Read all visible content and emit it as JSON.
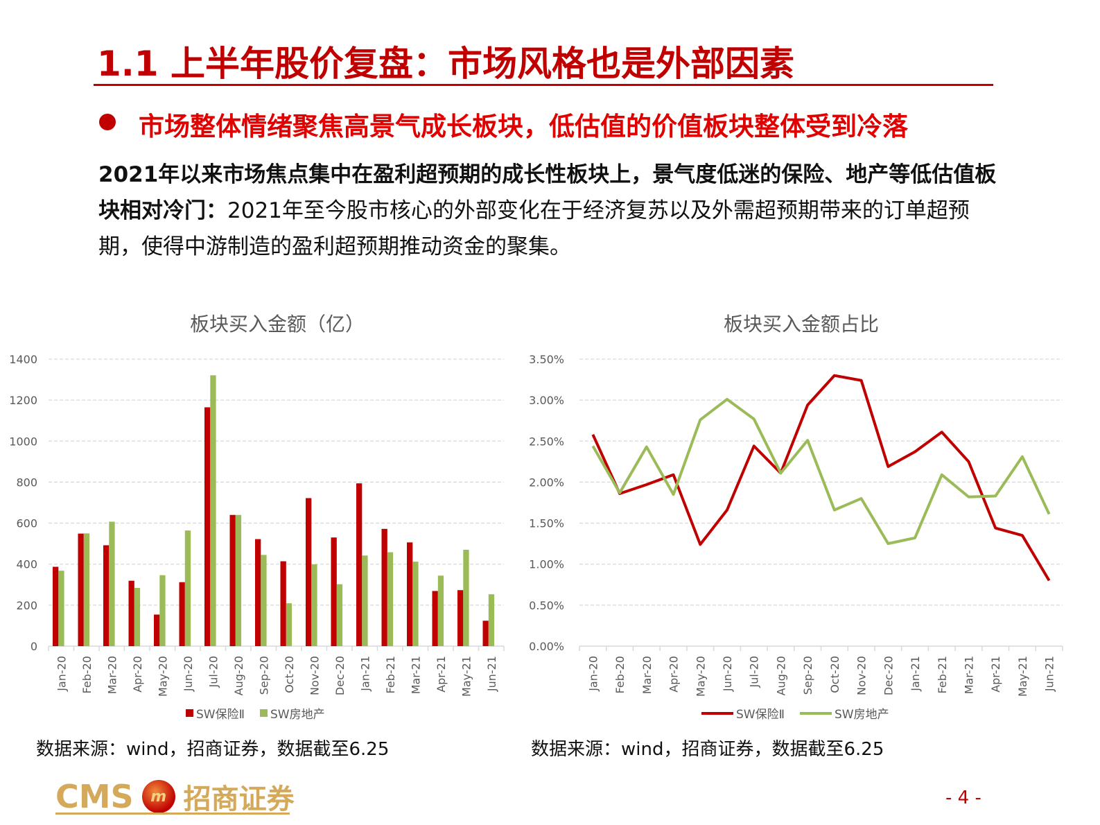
{
  "header": {
    "title": "1.1  上半年股价复盘：市场风格也是外部因素",
    "bullet": "市场整体情绪聚焦高景气成长板块，低估值的价值板块整体受到冷落"
  },
  "body": {
    "bold": "2021年以来市场焦点集中在盈利超预期的成长性板块上，景气度低迷的保险、地产等低估值板块相对冷门：",
    "normal": "2021年至今股市核心的外部变化在于经济复苏以及外需超预期带来的订单超预期，使得中游制造的盈利超预期推动资金的聚集。"
  },
  "colors": {
    "accent": "#c00000",
    "insurance": "#c00000",
    "realestate": "#9bbb59"
  },
  "chart_data": [
    {
      "type": "bar",
      "title": "板块买入金额（亿）",
      "xlabel": "",
      "ylabel": "",
      "ylim": [
        0,
        1400
      ],
      "yticks": [
        "0",
        "200",
        "400",
        "600",
        "800",
        "1000",
        "1200",
        "1400"
      ],
      "grid": true,
      "legend": "bottom",
      "categories": [
        "Jan-20",
        "Feb-20",
        "Mar-20",
        "Apr-20",
        "May-20",
        "Jun-20",
        "Jul-20",
        "Aug-20",
        "Sep-20",
        "Oct-20",
        "Nov-20",
        "Dec-20",
        "Jan-21",
        "Feb-21",
        "Mar-21",
        "Apr-21",
        "May-21",
        "Jun-21"
      ],
      "series": [
        {
          "name": "SW保险Ⅱ",
          "values": [
            387,
            549,
            492,
            319,
            154,
            312,
            1165,
            640,
            522,
            414,
            722,
            530,
            794,
            572,
            506,
            269,
            273,
            124
          ]
        },
        {
          "name": "SW房地产",
          "values": [
            368,
            550,
            607,
            284,
            346,
            564,
            1321,
            640,
            445,
            209,
            399,
            302,
            442,
            458,
            412,
            344,
            470,
            253
          ]
        }
      ]
    },
    {
      "type": "line",
      "title": "板块买入金额占比",
      "xlabel": "",
      "ylabel": "",
      "ylim": [
        0,
        3.5
      ],
      "yticks": [
        "0.00%",
        "0.50%",
        "1.00%",
        "1.50%",
        "2.00%",
        "2.50%",
        "3.00%",
        "3.50%"
      ],
      "grid": true,
      "legend": "bottom",
      "categories": [
        "Jan-20",
        "Feb-20",
        "Mar-20",
        "Apr-20",
        "May-20",
        "Jun-20",
        "Jul-20",
        "Aug-20",
        "Sep-20",
        "Oct-20",
        "Nov-20",
        "Dec-20",
        "Jan-21",
        "Feb-21",
        "Mar-21",
        "Apr-21",
        "May-21",
        "Jun-21"
      ],
      "series": [
        {
          "name": "SW保险Ⅱ",
          "values": [
            2.58,
            1.86,
            1.97,
            2.09,
            1.24,
            1.66,
            2.44,
            2.11,
            2.94,
            3.3,
            3.24,
            2.19,
            2.37,
            2.61,
            2.25,
            1.44,
            1.35,
            0.8
          ]
        },
        {
          "name": "SW房地产",
          "values": [
            2.44,
            1.87,
            2.43,
            1.85,
            2.76,
            3.01,
            2.77,
            2.11,
            2.51,
            1.66,
            1.8,
            1.25,
            1.32,
            2.09,
            1.82,
            1.83,
            2.31,
            1.61
          ]
        }
      ]
    }
  ],
  "sources": {
    "left": "数据来源：wind，招商证券，数据截至6.25",
    "right": "数据来源：wind，招商证券，数据截至6.25"
  },
  "footer": {
    "logo_en": "CMS",
    "logo_cn": "招商证券",
    "page": "- 4 -"
  }
}
